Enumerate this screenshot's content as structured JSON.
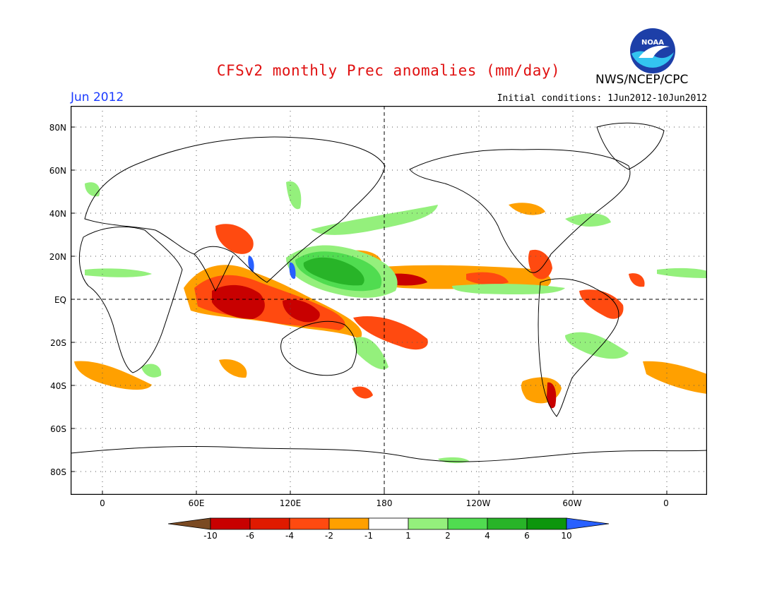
{
  "header": {
    "title": "CFSv2 monthly Prec anomalies (mm/day)",
    "organization": "NWS/NCEP/CPC",
    "month": "Jun 2012",
    "initial_conditions": "Initial conditions: 1Jun2012-10Jun2012"
  },
  "logo": {
    "text": "NOAA"
  },
  "axes": {
    "lat_labels": [
      "80N",
      "60N",
      "40N",
      "20N",
      "EQ",
      "20S",
      "40S",
      "60S",
      "80S"
    ],
    "lon_labels": [
      "0",
      "60E",
      "120E",
      "180",
      "120W",
      "60W",
      "0"
    ]
  },
  "colorbar": {
    "labels": [
      "-10",
      "-6",
      "-4",
      "-2",
      "-1",
      "1",
      "2",
      "4",
      "6",
      "10"
    ],
    "colors": [
      "#7a4a22",
      "#c80000",
      "#e01a00",
      "#ff4a10",
      "#ffa000",
      "#ffffff",
      "#94f07c",
      "#50dc50",
      "#28b428",
      "#0c960c",
      "#2860ff"
    ]
  },
  "map_colors": {
    "wet_light": "#94f07c",
    "wet_mid": "#50dc50",
    "wet_dark": "#28b428",
    "wet_extreme": "#2860ff",
    "dry_light": "#ffa000",
    "dry_mid": "#ff4a10",
    "dry_dark": "#c80000"
  }
}
